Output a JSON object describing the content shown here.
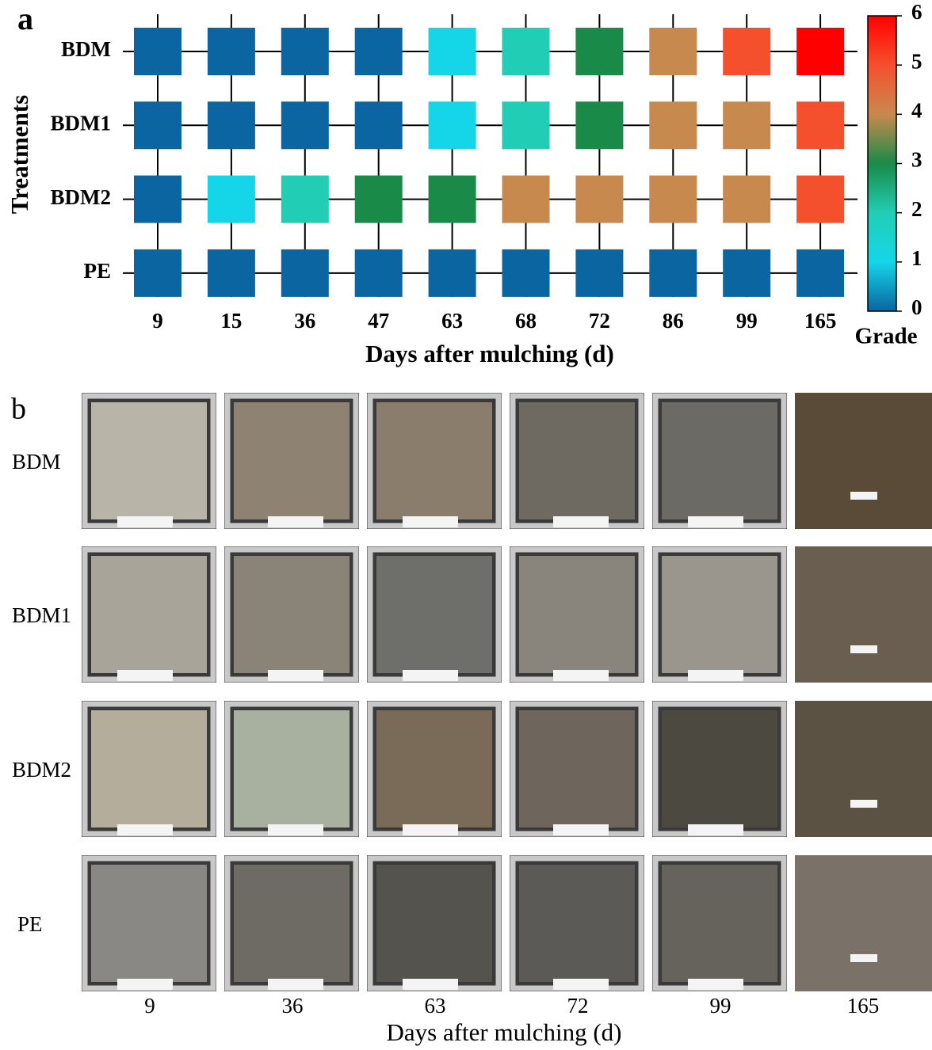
{
  "chart_data": {
    "type": "heatmap",
    "label": "a",
    "xlabel": "Days after mulching (d)",
    "ylabel": "Treatments",
    "categories": [
      9,
      15,
      36,
      47,
      63,
      68,
      72,
      86,
      99,
      165
    ],
    "series": [
      {
        "name": "BDM",
        "values": [
          0,
          0,
          0,
          0,
          1,
          2,
          3,
          4,
          5,
          6
        ]
      },
      {
        "name": "BDM1",
        "values": [
          0,
          0,
          0,
          0,
          1,
          2,
          3,
          4,
          4,
          5
        ]
      },
      {
        "name": "BDM2",
        "values": [
          0,
          1,
          2,
          3,
          3,
          4,
          4,
          4,
          4,
          5
        ]
      },
      {
        "name": "PE",
        "values": [
          0,
          0,
          0,
          0,
          0,
          0,
          0,
          0,
          0,
          0
        ]
      }
    ],
    "colormap": [
      "#0a65a0",
      "#14d6e8",
      "#22cdb5",
      "#1a8a48",
      "#c8894e",
      "#f5502e",
      "#ff0000"
    ],
    "clim": [
      0,
      6
    ],
    "cticks": [
      0,
      1,
      2,
      3,
      4,
      5,
      6
    ],
    "colorbar_label": "Grade"
  },
  "photo_panel": {
    "label": "b",
    "rows": [
      "BDM",
      "BDM1",
      "BDM2",
      "PE"
    ],
    "columns": [
      9,
      36,
      63,
      72,
      99,
      165
    ],
    "xlabel": "Days after mulching (d)"
  }
}
